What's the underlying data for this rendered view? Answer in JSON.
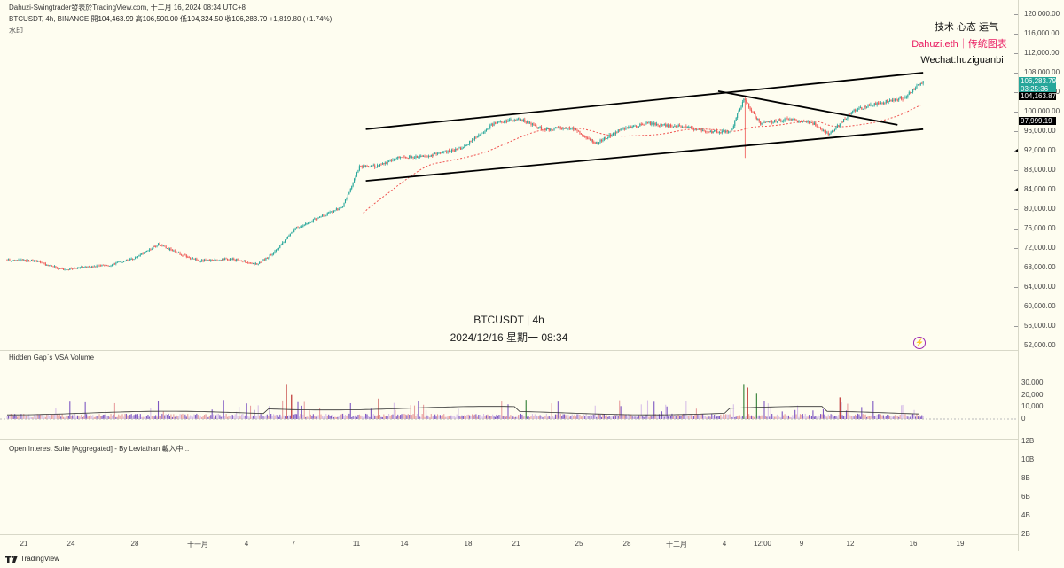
{
  "header": {
    "publisher": "Dahuzi-Swingtrader發表於TradingView.com, 十二月 16, 2024 08:34 UTC+8",
    "symbol": "BTCUSDT, 4h, BINANCE",
    "open_label": "開",
    "open": "104,463.99",
    "high_label": "高",
    "high": "106,500.00",
    "low_label": "低",
    "low": "104,324.50",
    "close_label": "收",
    "close": "106,283.79",
    "change": "+1,819.80 (+1.74%)",
    "sub": "水印"
  },
  "watermark": {
    "line1": "BTCUSDT | 4h",
    "line2": "2024/12/16 星期一 08:34"
  },
  "right_text": {
    "line1": "技术 心态 运气",
    "line2": "Dahuzi.eth｜传统图表",
    "line3": "Wechat:huziguanbi"
  },
  "price_axis": [
    "120,000.00",
    "116,000.00",
    "112,000.00",
    "108,000.00",
    "104,000.00",
    "100,000.00",
    "96,000.00",
    "92,000.00",
    "88,000.00",
    "84,000.00",
    "80,000.00",
    "76,000.00",
    "72,000.00",
    "68,000.00",
    "64,000.00",
    "60,000.00",
    "56,000.00",
    "52,000.00"
  ],
  "price_tags": {
    "last": "106,283.79",
    "countdown": "03:25:36",
    "level1": "104,163.87",
    "level2": "97,999.19",
    "last_color": "#26a69a",
    "level1_color": "#000000",
    "level2_color": "#000000"
  },
  "volume_axis": [
    "30,000",
    "20,000",
    "10,000",
    "0"
  ],
  "oi_axis": [
    "12B",
    "10B",
    "8B",
    "6B",
    "4B",
    "2B"
  ],
  "indicators": {
    "volume": "Hidden Gap`s VSA Volume",
    "oi": "Open Interest Suite [Aggregated] - By Leviathan 載入中..."
  },
  "time_axis": [
    "21",
    "24",
    "28",
    "十一月",
    "4",
    "7",
    "11",
    "14",
    "18",
    "21",
    "25",
    "28",
    "十二月",
    "4",
    "12:00",
    "9",
    "12",
    "16",
    "19"
  ],
  "footer": {
    "brand": "TradingView"
  },
  "colors": {
    "up": "#26a69a",
    "down": "#ef5350",
    "background": "#fefdf0",
    "watermark_pink": "#e91e63"
  },
  "chart_data": {
    "type": "candlestick",
    "symbol": "BTCUSDT",
    "interval": "4h",
    "ylim": [
      52000,
      120000
    ],
    "anchors": [
      {
        "t": 0,
        "p": 69600
      },
      {
        "t": 20,
        "p": 69500
      },
      {
        "t": 45,
        "p": 67500
      },
      {
        "t": 60,
        "p": 68200
      },
      {
        "t": 80,
        "p": 68500
      },
      {
        "t": 100,
        "p": 70000
      },
      {
        "t": 118,
        "p": 72800
      },
      {
        "t": 135,
        "p": 70800
      },
      {
        "t": 150,
        "p": 69400
      },
      {
        "t": 175,
        "p": 69800
      },
      {
        "t": 195,
        "p": 68700
      },
      {
        "t": 208,
        "p": 71000
      },
      {
        "t": 225,
        "p": 76000
      },
      {
        "t": 245,
        "p": 78500
      },
      {
        "t": 262,
        "p": 80500
      },
      {
        "t": 275,
        "p": 88600
      },
      {
        "t": 290,
        "p": 88800
      },
      {
        "t": 305,
        "p": 90600
      },
      {
        "t": 330,
        "p": 91000
      },
      {
        "t": 355,
        "p": 92500
      },
      {
        "t": 380,
        "p": 97600
      },
      {
        "t": 400,
        "p": 98500
      },
      {
        "t": 420,
        "p": 96300
      },
      {
        "t": 440,
        "p": 96800
      },
      {
        "t": 460,
        "p": 93500
      },
      {
        "t": 480,
        "p": 96500
      },
      {
        "t": 500,
        "p": 97600
      },
      {
        "t": 530,
        "p": 96800
      },
      {
        "t": 550,
        "p": 95900
      },
      {
        "t": 565,
        "p": 96000
      },
      {
        "t": 575,
        "p": 102600
      },
      {
        "t": 588,
        "p": 97500
      },
      {
        "t": 610,
        "p": 98600
      },
      {
        "t": 630,
        "p": 97500
      },
      {
        "t": 642,
        "p": 95300
      },
      {
        "t": 660,
        "p": 100200
      },
      {
        "t": 680,
        "p": 101800
      },
      {
        "t": 700,
        "p": 102800
      },
      {
        "t": 715,
        "p": 106300
      }
    ],
    "volume_ylim": [
      0,
      30000
    ],
    "trendlines": [
      {
        "from": {
          "t": 280,
          "p": 96400
        },
        "to": {
          "t": 715,
          "p": 108000
        },
        "label": "channel upper"
      },
      {
        "from": {
          "t": 280,
          "p": 85800
        },
        "to": {
          "t": 715,
          "p": 96400
        },
        "label": "channel lower"
      },
      {
        "from": {
          "t": 555,
          "p": 104200
        },
        "to": {
          "t": 695,
          "p": 97300
        },
        "label": "descending line"
      }
    ]
  }
}
